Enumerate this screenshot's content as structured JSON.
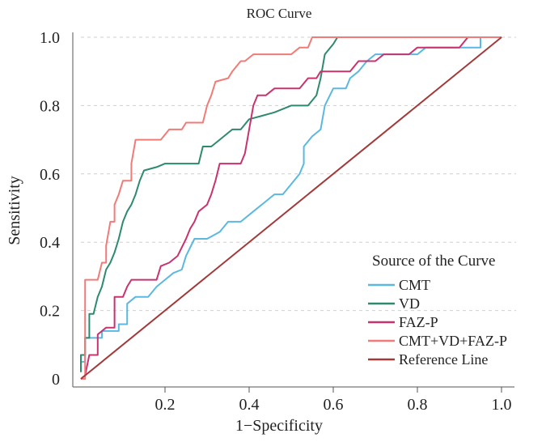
{
  "chart_data": {
    "type": "line",
    "title": "ROC Curve",
    "xlabel": "1−Specificity",
    "ylabel": "Sensitivity",
    "xlim": [
      0,
      1
    ],
    "ylim": [
      0,
      1
    ],
    "x_ticks": [
      {
        "value": 0.2,
        "label": "0.2"
      },
      {
        "value": 0.4,
        "label": "0.4"
      },
      {
        "value": 0.6,
        "label": "0.6"
      },
      {
        "value": 0.8,
        "label": "0.8"
      },
      {
        "value": 1.0,
        "label": "1.0"
      }
    ],
    "y_ticks": [
      {
        "value": 0.0,
        "label": "0"
      },
      {
        "value": 0.2,
        "label": "0.2"
      },
      {
        "value": 0.4,
        "label": "0.4"
      },
      {
        "value": 0.6,
        "label": "0.6"
      },
      {
        "value": 0.8,
        "label": "0.8"
      },
      {
        "value": 1.0,
        "label": "1.0"
      }
    ],
    "grid": "horizontal-dashed",
    "legend": {
      "title": "Source of the Curve",
      "position": "bottom-right"
    },
    "series": [
      {
        "name": "CMT",
        "color": "#5bb8e0",
        "points": [
          [
            0,
            0.02
          ],
          [
            0,
            0.05
          ],
          [
            0.01,
            0.05
          ],
          [
            0.01,
            0.12
          ],
          [
            0.05,
            0.12
          ],
          [
            0.05,
            0.14
          ],
          [
            0.09,
            0.14
          ],
          [
            0.09,
            0.16
          ],
          [
            0.11,
            0.16
          ],
          [
            0.11,
            0.22
          ],
          [
            0.13,
            0.24
          ],
          [
            0.16,
            0.24
          ],
          [
            0.18,
            0.27
          ],
          [
            0.2,
            0.29
          ],
          [
            0.22,
            0.31
          ],
          [
            0.24,
            0.32
          ],
          [
            0.25,
            0.36
          ],
          [
            0.27,
            0.41
          ],
          [
            0.3,
            0.41
          ],
          [
            0.33,
            0.43
          ],
          [
            0.35,
            0.46
          ],
          [
            0.38,
            0.46
          ],
          [
            0.41,
            0.49
          ],
          [
            0.44,
            0.52
          ],
          [
            0.46,
            0.54
          ],
          [
            0.48,
            0.54
          ],
          [
            0.5,
            0.57
          ],
          [
            0.52,
            0.6
          ],
          [
            0.53,
            0.63
          ],
          [
            0.53,
            0.68
          ],
          [
            0.55,
            0.71
          ],
          [
            0.57,
            0.73
          ],
          [
            0.58,
            0.8
          ],
          [
            0.6,
            0.85
          ],
          [
            0.63,
            0.85
          ],
          [
            0.64,
            0.88
          ],
          [
            0.66,
            0.9
          ],
          [
            0.68,
            0.93
          ],
          [
            0.7,
            0.95
          ],
          [
            0.8,
            0.95
          ],
          [
            0.82,
            0.97
          ],
          [
            0.9,
            0.97
          ],
          [
            0.95,
            0.97
          ],
          [
            0.95,
            1.0
          ],
          [
            1.0,
            1.0
          ]
        ]
      },
      {
        "name": "VD",
        "color": "#2e8a6e",
        "points": [
          [
            0,
            0.02
          ],
          [
            0,
            0.07
          ],
          [
            0.01,
            0.07
          ],
          [
            0.01,
            0.12
          ],
          [
            0.02,
            0.12
          ],
          [
            0.02,
            0.19
          ],
          [
            0.03,
            0.19
          ],
          [
            0.04,
            0.24
          ],
          [
            0.05,
            0.27
          ],
          [
            0.06,
            0.32
          ],
          [
            0.07,
            0.34
          ],
          [
            0.08,
            0.37
          ],
          [
            0.09,
            0.41
          ],
          [
            0.1,
            0.46
          ],
          [
            0.11,
            0.49
          ],
          [
            0.12,
            0.51
          ],
          [
            0.13,
            0.54
          ],
          [
            0.14,
            0.58
          ],
          [
            0.15,
            0.61
          ],
          [
            0.18,
            0.62
          ],
          [
            0.2,
            0.63
          ],
          [
            0.28,
            0.63
          ],
          [
            0.29,
            0.68
          ],
          [
            0.31,
            0.68
          ],
          [
            0.33,
            0.7
          ],
          [
            0.36,
            0.73
          ],
          [
            0.38,
            0.73
          ],
          [
            0.4,
            0.76
          ],
          [
            0.43,
            0.77
          ],
          [
            0.46,
            0.78
          ],
          [
            0.5,
            0.8
          ],
          [
            0.54,
            0.8
          ],
          [
            0.56,
            0.83
          ],
          [
            0.57,
            0.88
          ],
          [
            0.58,
            0.95
          ],
          [
            0.6,
            0.98
          ],
          [
            0.61,
            1.0
          ],
          [
            1.0,
            1.0
          ]
        ]
      },
      {
        "name": "FAZ-P",
        "color": "#c8336e",
        "points": [
          [
            0,
            0
          ],
          [
            0.01,
            0.01
          ],
          [
            0.02,
            0.07
          ],
          [
            0.04,
            0.07
          ],
          [
            0.04,
            0.13
          ],
          [
            0.06,
            0.15
          ],
          [
            0.08,
            0.15
          ],
          [
            0.08,
            0.24
          ],
          [
            0.1,
            0.24
          ],
          [
            0.11,
            0.27
          ],
          [
            0.12,
            0.29
          ],
          [
            0.18,
            0.29
          ],
          [
            0.19,
            0.33
          ],
          [
            0.21,
            0.34
          ],
          [
            0.23,
            0.36
          ],
          [
            0.25,
            0.41
          ],
          [
            0.26,
            0.44
          ],
          [
            0.27,
            0.46
          ],
          [
            0.28,
            0.49
          ],
          [
            0.3,
            0.51
          ],
          [
            0.31,
            0.54
          ],
          [
            0.32,
            0.58
          ],
          [
            0.33,
            0.63
          ],
          [
            0.38,
            0.63
          ],
          [
            0.39,
            0.66
          ],
          [
            0.4,
            0.73
          ],
          [
            0.41,
            0.8
          ],
          [
            0.42,
            0.83
          ],
          [
            0.44,
            0.83
          ],
          [
            0.46,
            0.85
          ],
          [
            0.52,
            0.85
          ],
          [
            0.54,
            0.88
          ],
          [
            0.56,
            0.88
          ],
          [
            0.57,
            0.9
          ],
          [
            0.64,
            0.9
          ],
          [
            0.66,
            0.93
          ],
          [
            0.7,
            0.93
          ],
          [
            0.72,
            0.95
          ],
          [
            0.78,
            0.95
          ],
          [
            0.8,
            0.97
          ],
          [
            0.9,
            0.97
          ],
          [
            0.92,
            1.0
          ],
          [
            1.0,
            1.0
          ]
        ]
      },
      {
        "name": "CMT+VD+FAZ-P",
        "color": "#f07b77",
        "points": [
          [
            0,
            0
          ],
          [
            0.01,
            0
          ],
          [
            0.01,
            0.29
          ],
          [
            0.04,
            0.29
          ],
          [
            0.05,
            0.34
          ],
          [
            0.06,
            0.34
          ],
          [
            0.06,
            0.39
          ],
          [
            0.07,
            0.46
          ],
          [
            0.08,
            0.46
          ],
          [
            0.08,
            0.51
          ],
          [
            0.09,
            0.54
          ],
          [
            0.1,
            0.58
          ],
          [
            0.12,
            0.58
          ],
          [
            0.12,
            0.63
          ],
          [
            0.13,
            0.7
          ],
          [
            0.19,
            0.7
          ],
          [
            0.21,
            0.73
          ],
          [
            0.24,
            0.73
          ],
          [
            0.25,
            0.75
          ],
          [
            0.29,
            0.75
          ],
          [
            0.3,
            0.8
          ],
          [
            0.31,
            0.83
          ],
          [
            0.32,
            0.87
          ],
          [
            0.35,
            0.88
          ],
          [
            0.36,
            0.9
          ],
          [
            0.38,
            0.93
          ],
          [
            0.39,
            0.93
          ],
          [
            0.41,
            0.95
          ],
          [
            0.5,
            0.95
          ],
          [
            0.52,
            0.97
          ],
          [
            0.54,
            0.97
          ],
          [
            0.55,
            1.0
          ],
          [
            1.0,
            1.0
          ]
        ]
      },
      {
        "name": "Reference Line",
        "color": "#a23a3a",
        "points": [
          [
            0,
            0
          ],
          [
            1,
            1
          ]
        ]
      }
    ]
  }
}
